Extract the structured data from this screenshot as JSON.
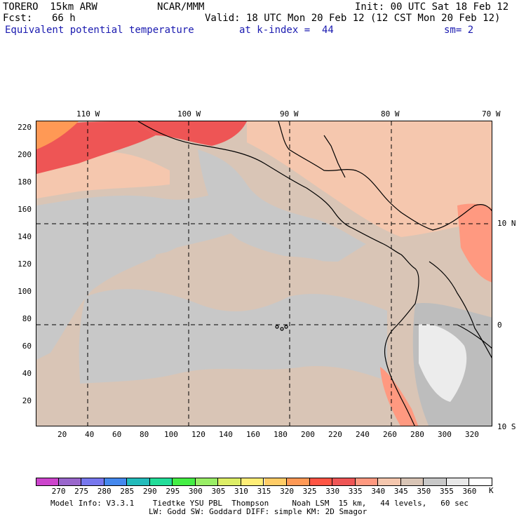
{
  "header": {
    "model": "TORERO  15km ARW",
    "center": "NCAR/MMM",
    "init": "Init: 00 UTC Sat 18 Feb 12",
    "fcst_label": "Fcst:",
    "fcst_value": "66 h",
    "valid": "Valid: 18 UTC Mon 20 Feb 12 (12 CST Mon 20 Feb 12)",
    "field": "Equivalent potential temperature",
    "level": "at k-index =  44",
    "smoothing": "sm= 2"
  },
  "map": {
    "top_longitude_labels": [
      "110 W",
      "100 W",
      "90 W",
      "80 W",
      "70 W"
    ],
    "right_latitude_labels": [
      "10 N",
      "0",
      "10 S"
    ],
    "left_axis_ticks": [
      "220",
      "200",
      "180",
      "160",
      "140",
      "120",
      "100",
      "80",
      "60",
      "40",
      "20"
    ],
    "bottom_axis_ticks": [
      "20",
      "40",
      "60",
      "80",
      "100",
      "120",
      "140",
      "160",
      "180",
      "200",
      "220",
      "240",
      "260",
      "280",
      "300",
      "320"
    ]
  },
  "colorbar": {
    "labels": [
      "270",
      "275",
      "280",
      "285",
      "290",
      "295",
      "300",
      "305",
      "310",
      "315",
      "320",
      "325",
      "330",
      "335",
      "340",
      "345",
      "350",
      "355",
      "360"
    ],
    "unit": "K",
    "colors": [
      "#cc44cc",
      "#9966cc",
      "#7777ee",
      "#4488ee",
      "#22bbbb",
      "#22dd99",
      "#44ee44",
      "#99ee66",
      "#ddee66",
      "#ffee77",
      "#ffcc66",
      "#ff9955",
      "#ff5544",
      "#ee5555",
      "#ff9980",
      "#f5c7ae",
      "#d9c5b6",
      "#c8c8c8",
      "#e8e8e8",
      "#ffffff"
    ]
  },
  "footer": {
    "line1": "Model Info: V3.3.1    Tiedtke YSU PBL  Thompson     Noah LSM  15 km,   44 levels,   60 sec",
    "line2": "LW: Godd SW: Goddard DIFF: simple KM: 2D Smagor"
  }
}
